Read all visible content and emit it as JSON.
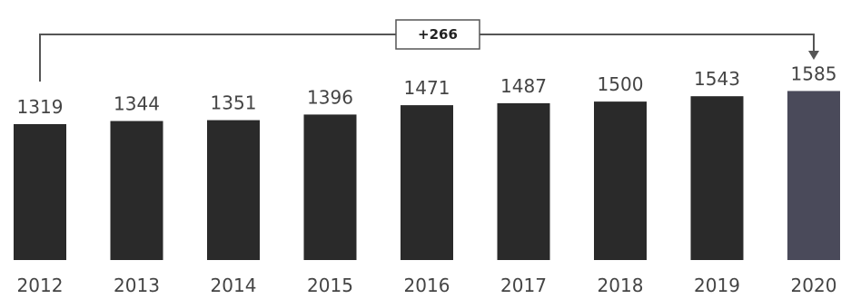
{
  "chart_data": {
    "type": "bar",
    "categories": [
      "2012",
      "2013",
      "2014",
      "2015",
      "2016",
      "2017",
      "2018",
      "2019",
      "2020"
    ],
    "values": [
      1319,
      1344,
      1351,
      1396,
      1471,
      1487,
      1500,
      1543,
      1585
    ],
    "value_labels": [
      "1319",
      "1344",
      "1351",
      "1396",
      "1471",
      "1487",
      "1500",
      "1543",
      "1585"
    ],
    "title": "",
    "xlabel": "",
    "ylabel": "",
    "grid": false,
    "legend": "none",
    "colors": {
      "bar": "#2a2a2a",
      "highlight_bar": "#4a4a5a",
      "connector": "#555555",
      "text": "#444444"
    },
    "highlight_index": 8,
    "annotation": {
      "text": "+266",
      "from_category": "2012",
      "to_category": "2020"
    }
  }
}
